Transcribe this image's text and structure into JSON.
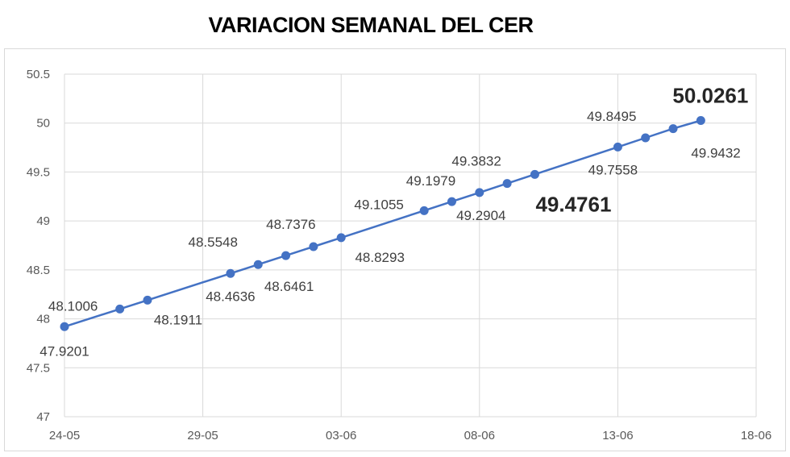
{
  "title": "VARIACION SEMANAL DEL CER",
  "chart_data": {
    "type": "line",
    "title": "VARIACION SEMANAL DEL CER",
    "xlabel": "",
    "ylabel": "",
    "x_ticks": [
      "24-05",
      "29-05",
      "03-06",
      "08-06",
      "13-06",
      "18-06"
    ],
    "y_ticks": [
      "47",
      "47.5",
      "48",
      "48.5",
      "49",
      "49.5",
      "50",
      "50.5"
    ],
    "xlim": [
      "2022-05-24",
      "2022-06-18"
    ],
    "ylim": [
      47,
      50.5
    ],
    "grid": true,
    "legend": "none",
    "series": [
      {
        "color": "#4472c4",
        "points": [
          {
            "x": "2022-05-24",
            "y": 47.9201,
            "label": "47.9201"
          },
          {
            "x": "2022-05-26",
            "y": 48.1006,
            "label": "48.1006"
          },
          {
            "x": "2022-05-27",
            "y": 48.1911,
            "label": "48.1911"
          },
          {
            "x": "2022-05-30",
            "y": 48.4636,
            "label": "48.4636"
          },
          {
            "x": "2022-05-31",
            "y": 48.5548,
            "label": "48.5548"
          },
          {
            "x": "2022-06-01",
            "y": 48.6461,
            "label": "48.6461"
          },
          {
            "x": "2022-06-02",
            "y": 48.7376,
            "label": "48.7376"
          },
          {
            "x": "2022-06-03",
            "y": 48.8293,
            "label": "48.8293"
          },
          {
            "x": "2022-06-06",
            "y": 49.1055,
            "label": "49.1055"
          },
          {
            "x": "2022-06-07",
            "y": 49.1979,
            "label": "49.1979"
          },
          {
            "x": "2022-06-08",
            "y": 49.2904,
            "label": "49.2904"
          },
          {
            "x": "2022-06-09",
            "y": 49.3832,
            "label": "49.3832"
          },
          {
            "x": "2022-06-10",
            "y": 49.4761,
            "label": "49.4761",
            "emphasis": true
          },
          {
            "x": "2022-06-13",
            "y": 49.7558,
            "label": "49.7558"
          },
          {
            "x": "2022-06-14",
            "y": 49.8495,
            "label": "49.8495"
          },
          {
            "x": "2022-06-15",
            "y": 49.9432,
            "label": "49.9432"
          },
          {
            "x": "2022-06-16",
            "y": 50.0261,
            "label": "50.0261",
            "emphasis": true
          }
        ]
      }
    ]
  }
}
